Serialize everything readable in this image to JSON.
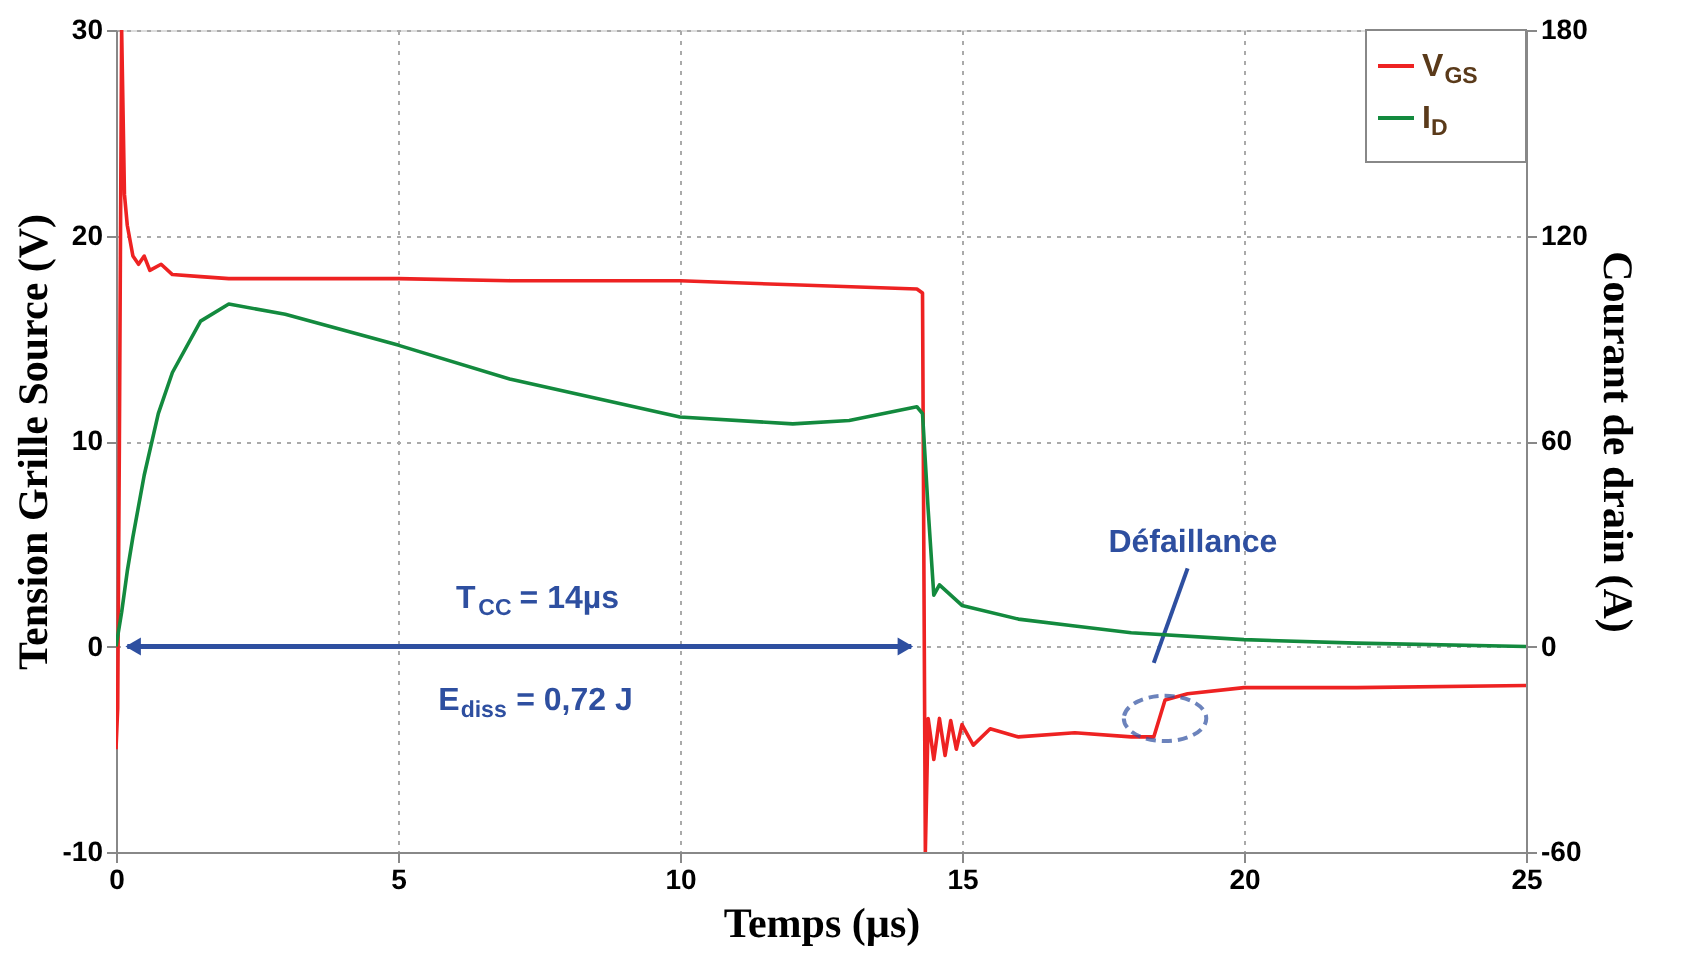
{
  "chart_data": {
    "type": "line",
    "xlabel": "Temps (µs)",
    "ylabel": "Tension Grille Source (V)",
    "y2label": "Courant de drain (A)",
    "xlim": [
      0,
      25
    ],
    "xticks": [
      0,
      5,
      10,
      15,
      20,
      25
    ],
    "ylim": [
      -10,
      30
    ],
    "yticks": [
      -10,
      0,
      10,
      20,
      30
    ],
    "y2lim": [
      -60,
      180
    ],
    "y2ticks": [
      -60,
      0,
      60,
      120,
      180
    ],
    "grid": true,
    "legend": "top right",
    "line_style": "solid",
    "marker": "none",
    "series": [
      {
        "name": "V$_{GS}$",
        "color": "#ee2222",
        "x": [
          0,
          0.03,
          0.06,
          0.1,
          0.15,
          0.2,
          0.3,
          0.4,
          0.5,
          0.6,
          0.8,
          1,
          1.5,
          2,
          3,
          5,
          7,
          10,
          12,
          14.2,
          14.3,
          14.35,
          14.4,
          14.5,
          14.6,
          14.7,
          14.8,
          14.9,
          15,
          15.2,
          15.5,
          16,
          17,
          18,
          18.4,
          18.6,
          19,
          20,
          22,
          25
        ],
        "values": [
          -5,
          -3,
          10,
          30,
          22,
          20.5,
          19,
          18.6,
          19,
          18.3,
          18.6,
          18.1,
          18,
          17.9,
          17.9,
          17.9,
          17.8,
          17.8,
          17.6,
          17.4,
          17.2,
          -10,
          -3.5,
          -5.5,
          -3.5,
          -5.3,
          -3.6,
          -5,
          -3.8,
          -4.8,
          -4,
          -4.4,
          -4.2,
          -4.4,
          -4.4,
          -2.6,
          -2.3,
          -2,
          -2,
          -1.9
        ]
      },
      {
        "name": "I$_{D}$",
        "color": "#138a3e",
        "axis": "y2",
        "x": [
          0,
          0.1,
          0.2,
          0.3,
          0.5,
          0.75,
          1,
          1.5,
          2,
          3,
          5,
          7,
          10,
          12,
          13,
          14.2,
          14.3,
          14.4,
          14.5,
          14.6,
          15,
          16,
          17,
          18,
          20,
          22,
          25
        ],
        "values": [
          0,
          10,
          22,
          32,
          50,
          68,
          80,
          95,
          100,
          97,
          88,
          78,
          67,
          65,
          66,
          70,
          68,
          40,
          15,
          18,
          12,
          8,
          6,
          4,
          2,
          1,
          0
        ]
      }
    ],
    "annotations": [
      "T$_{CC}$ = 14µs",
      "E$_{diss}$ = 0,72 J",
      "Défaillance"
    ]
  }
}
